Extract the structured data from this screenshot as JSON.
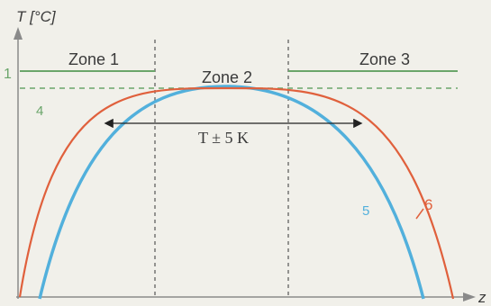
{
  "axes": {
    "y_label": "T [°C]",
    "x_label": "z"
  },
  "zones": [
    "Zone 1",
    "Zone 2",
    "Zone 3"
  ],
  "band_label": "T ± 5 K",
  "curve_labels": {
    "green_solid": "1",
    "green_dashed": "4",
    "blue": "5",
    "red": "6"
  },
  "colors": {
    "axis": "#8a8a8a",
    "green": "#6aa56a",
    "blue": "#52b0dc",
    "red": "#e0603c",
    "divider": "#555555",
    "text": "#3a3a3a"
  }
}
